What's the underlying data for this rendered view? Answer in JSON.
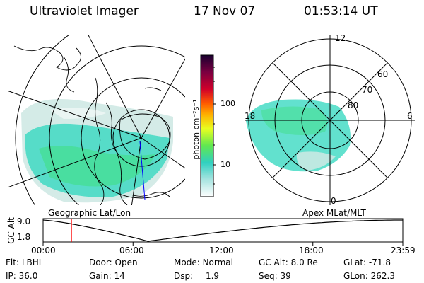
{
  "header": {
    "title": "Ultraviolet Imager",
    "date": "17 Nov 07",
    "time": "01:53:14 UT"
  },
  "colorbar": {
    "unit_label": "photon cm⁻²s⁻¹",
    "ticks": [
      "100",
      "10"
    ]
  },
  "geo_panel": {
    "caption": "Geographic Lat/Lon"
  },
  "apex_panel": {
    "caption": "Apex MLat/MLT",
    "mlt_labels": {
      "top": "12",
      "left": "18",
      "right": "6",
      "bottom": "0"
    },
    "lat_labels": [
      "60",
      "70",
      "80"
    ]
  },
  "altitude_plot": {
    "ylabel": "GC Alt",
    "yticks": [
      "9.0",
      "1.8"
    ],
    "xticks": [
      "00:00",
      "06:00",
      "12:00",
      "18:00",
      "23:59"
    ],
    "current_hour": 1.89,
    "min_hour": 7.0,
    "marker_color": "#ff0000"
  },
  "info": {
    "row1": [
      {
        "key": "Flt:",
        "value": "LBHL"
      },
      {
        "key": "Door:",
        "value": "Open"
      },
      {
        "key": "Mode:",
        "value": "Normal"
      },
      {
        "key": "GC Alt:",
        "value": "8.0 Re"
      },
      {
        "key": "GLat:",
        "value": "-71.8"
      }
    ],
    "row2": [
      {
        "key": "IP:",
        "value": "36.0"
      },
      {
        "key": "Gain:",
        "value": "14"
      },
      {
        "key": "Dsp:",
        "value": "1.9"
      },
      {
        "key": "Seq:",
        "value": "39"
      },
      {
        "key": "GLon:",
        "value": "262.3"
      }
    ]
  },
  "colors": {
    "aurora_primary": "#36d8c0",
    "aurora_green": "#40e080",
    "aurora_pale": "#cfe9e4"
  }
}
